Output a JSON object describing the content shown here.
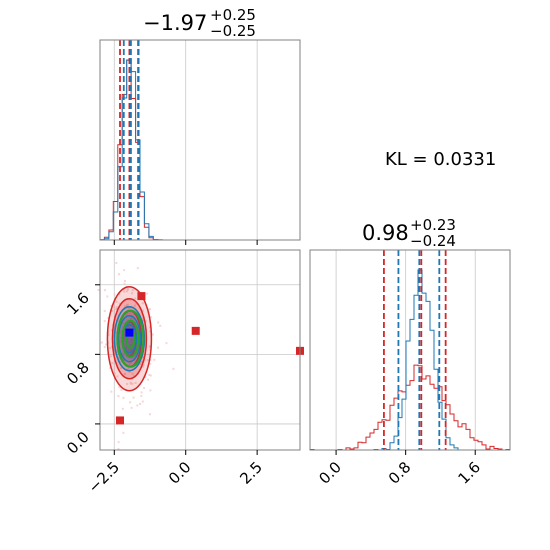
{
  "chart_data": {
    "type": "scatter",
    "subtype": "corner-plot",
    "annotation": "KL = 0.0331",
    "colors": {
      "blue": "#1f77b4",
      "red": "#d62728",
      "green": "#2ca02c",
      "grid": "#c8c8c8",
      "axis": "#808080"
    },
    "grid": true,
    "params": [
      {
        "title_main": "−1.97",
        "title_plus": "+0.25",
        "title_minus": "−0.25",
        "median": -1.97,
        "range": [
          -3.0,
          4.0
        ],
        "ticks": [
          -2.5,
          0.0,
          2.5
        ],
        "tick_labels": [
          "−2.5",
          "0.0",
          "2.5"
        ]
      },
      {
        "title_main": "0.98",
        "title_plus": "+0.23",
        "title_minus": "−0.24",
        "median": 0.98,
        "range": [
          -0.3,
          2.0
        ],
        "ticks": [
          0.0,
          0.8,
          1.6
        ],
        "tick_labels": [
          "0.0",
          "0.8",
          "1.6"
        ]
      }
    ],
    "quantile_lines": {
      "param0": {
        "blue": [
          -2.22,
          -1.97,
          -1.72
        ],
        "red": [
          -2.3,
          -1.97,
          -1.65
        ]
      },
      "param1": {
        "blue": [
          0.74,
          0.98,
          1.21
        ],
        "red": [
          0.55,
          0.98,
          1.26
        ]
      }
    },
    "markers_red": [
      {
        "x": -1.55,
        "y": 1.47
      },
      {
        "x": 0.35,
        "y": 1.07
      },
      {
        "x": -2.3,
        "y": 0.04
      },
      {
        "x": 4.0,
        "y": 0.84
      }
    ],
    "marker_blue": {
      "x": -1.97,
      "y": 1.05
    }
  }
}
